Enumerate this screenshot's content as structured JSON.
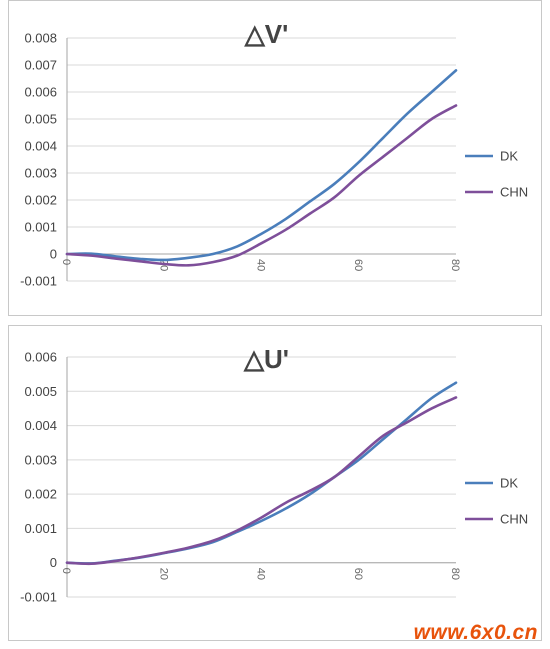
{
  "chart_data": [
    {
      "type": "line",
      "title": "△V'",
      "xlabel": "",
      "ylabel": "",
      "x": [
        0,
        5,
        10,
        15,
        20,
        25,
        30,
        35,
        40,
        45,
        50,
        55,
        60,
        65,
        70,
        75,
        80
      ],
      "xticks": [
        "0",
        "20",
        "40",
        "60",
        "80"
      ],
      "ylim": [
        -0.001,
        0.008
      ],
      "yticks": [
        "-0.001",
        "0",
        "0.001",
        "0.002",
        "0.003",
        "0.004",
        "0.005",
        "0.006",
        "0.007",
        "0.008"
      ],
      "grid": true,
      "legend": "right",
      "series": [
        {
          "name": "DK",
          "color": "#4a7ebb",
          "values": [
            0.0,
            1e-05,
            -9e-05,
            -0.00018,
            -0.00022,
            -0.00014,
            0.0,
            0.00028,
            0.00075,
            0.0013,
            0.00195,
            0.0026,
            0.0034,
            0.0043,
            0.0052,
            0.006,
            0.0068
          ]
        },
        {
          "name": "CHN",
          "color": "#7e4f9a",
          "values": [
            0.0,
            -6e-05,
            -0.00017,
            -0.00027,
            -0.00037,
            -0.00042,
            -0.0003,
            -6e-05,
            0.0004,
            0.0009,
            0.0015,
            0.0021,
            0.0029,
            0.0036,
            0.0043,
            0.005,
            0.0055
          ]
        }
      ]
    },
    {
      "type": "line",
      "title": "△U'",
      "xlabel": "",
      "ylabel": "",
      "x": [
        0,
        5,
        10,
        15,
        20,
        25,
        30,
        35,
        40,
        45,
        50,
        55,
        60,
        65,
        70,
        75,
        80
      ],
      "xticks": [
        "0",
        "20",
        "40",
        "60",
        "80"
      ],
      "ylim": [
        -0.001,
        0.006
      ],
      "yticks": [
        "-0.001",
        "0",
        "0.001",
        "0.002",
        "0.003",
        "0.004",
        "0.005",
        "0.006"
      ],
      "grid": true,
      "legend": "right",
      "series": [
        {
          "name": "DK",
          "color": "#4a7ebb",
          "values": [
            0.0,
            -2e-05,
            6e-05,
            0.00015,
            0.00028,
            0.00042,
            0.0006,
            0.0009,
            0.00122,
            0.00158,
            0.002,
            0.0025,
            0.003,
            0.0036,
            0.0042,
            0.0048,
            0.00525
          ]
        },
        {
          "name": "CHN",
          "color": "#7e4f9a",
          "values": [
            0.0,
            -3e-05,
            5e-05,
            0.00016,
            0.00029,
            0.00044,
            0.00064,
            0.00094,
            0.00132,
            0.00175,
            0.0021,
            0.0025,
            0.0031,
            0.0037,
            0.0041,
            0.0045,
            0.00482
          ]
        }
      ]
    }
  ],
  "watermark": "www.6x0.cn"
}
